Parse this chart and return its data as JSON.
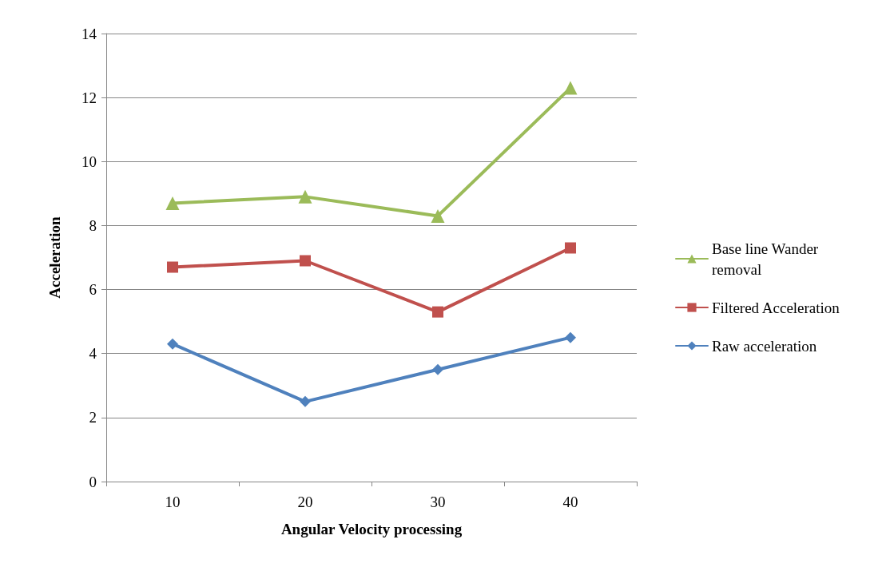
{
  "chart_data": {
    "type": "line",
    "xlabel": "Angular Velocity processing",
    "ylabel": "Acceleration",
    "categories": [
      "10",
      "20",
      "30",
      "40"
    ],
    "series": [
      {
        "name": "Base line Wander removal",
        "color": "#9bbb59",
        "marker": "triangle",
        "values": [
          8.7,
          8.9,
          8.3,
          12.3
        ]
      },
      {
        "name": "Filtered Acceleration",
        "color": "#c0504d",
        "marker": "square",
        "values": [
          6.7,
          6.9,
          5.3,
          7.3
        ]
      },
      {
        "name": "Raw acceleration",
        "color": "#4f81bd",
        "marker": "diamond",
        "values": [
          4.3,
          2.5,
          3.5,
          4.5
        ]
      }
    ],
    "ylim": [
      0,
      14
    ],
    "yticks": [
      0,
      2,
      4,
      6,
      8,
      10,
      12,
      14
    ],
    "grid": "y",
    "legend": "right",
    "line_style": "solid"
  }
}
